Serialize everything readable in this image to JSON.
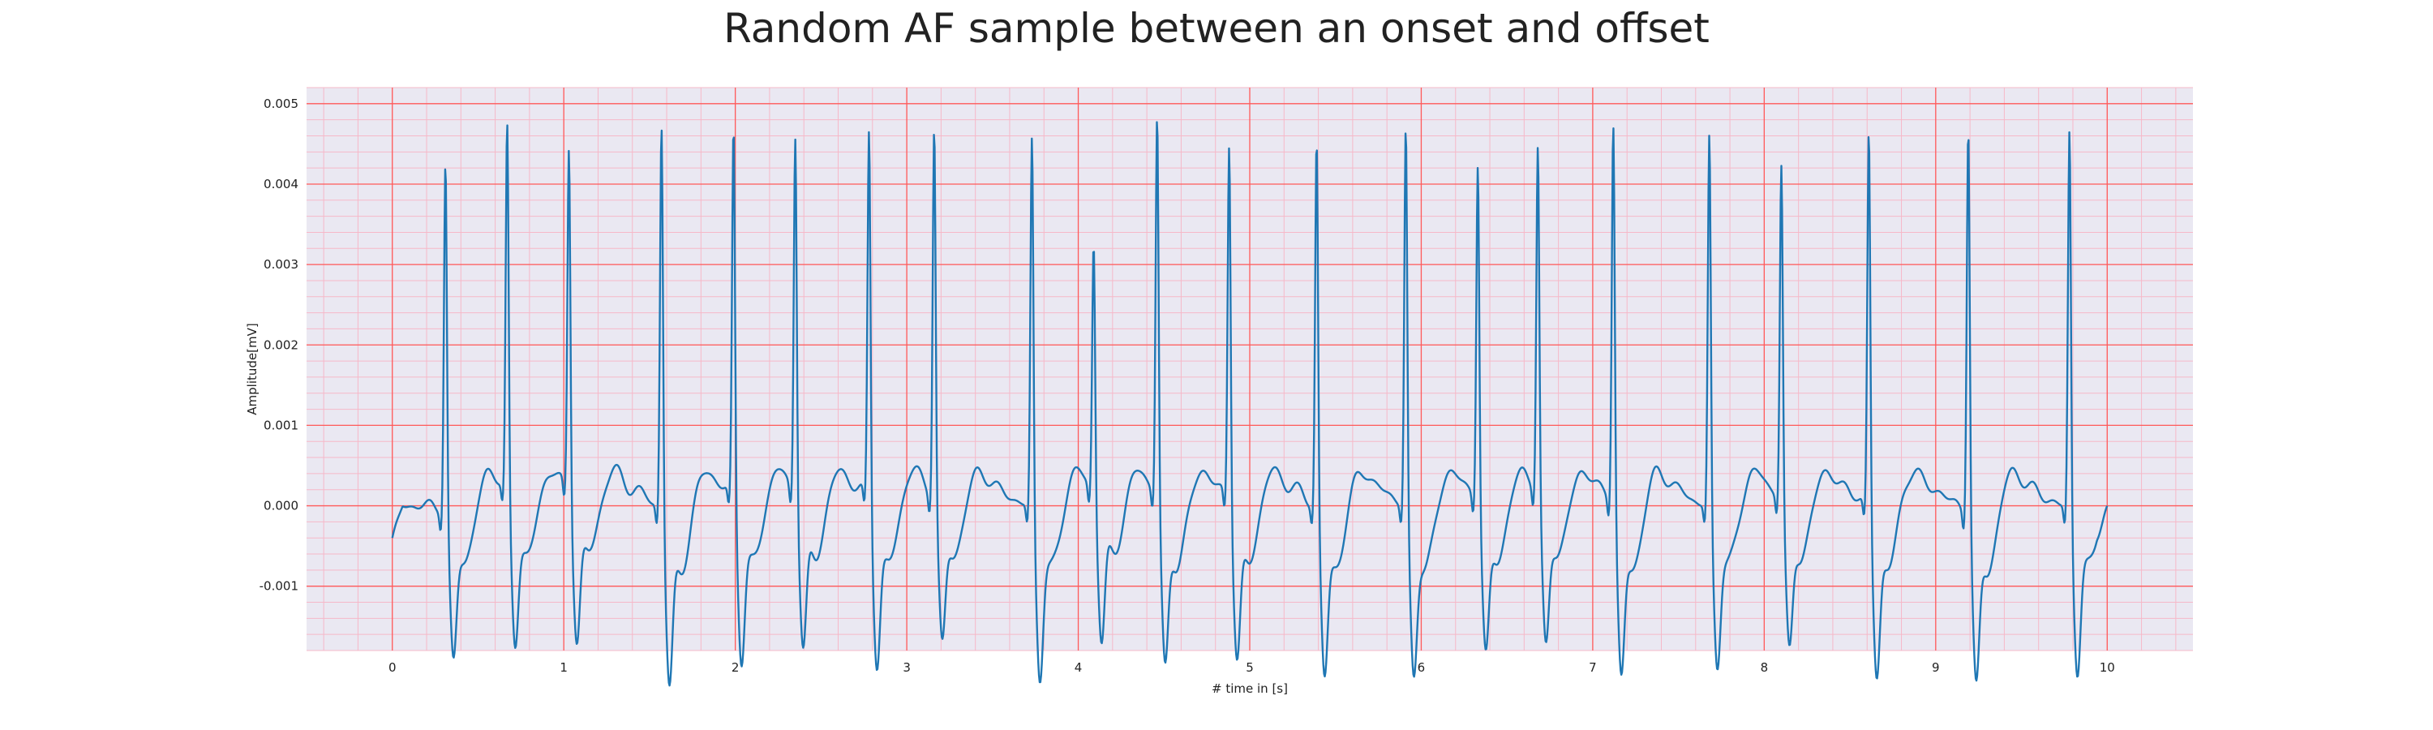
{
  "chart_data": {
    "type": "line",
    "title": "Random AF sample between an onset and offset",
    "xlabel": "# time in [s]",
    "ylabel": "Amplitude[mV]",
    "xlim": [
      -0.5,
      10.5
    ],
    "ylim": [
      -0.0018,
      0.0052
    ],
    "x_ticks": [
      0,
      1,
      2,
      3,
      4,
      5,
      6,
      7,
      8,
      9,
      10
    ],
    "x_tick_labels": [
      "0",
      "1",
      "2",
      "3",
      "4",
      "5",
      "6",
      "7",
      "8",
      "9",
      "10"
    ],
    "y_ticks": [
      -0.001,
      0.0,
      0.001,
      0.002,
      0.003,
      0.004,
      0.005
    ],
    "y_tick_labels": [
      "-0.001",
      "0.000",
      "0.001",
      "0.002",
      "0.003",
      "0.004",
      "0.005"
    ],
    "grid": {
      "major": true,
      "minor": true,
      "major_x_step": 1.0,
      "major_y_step": 0.001,
      "minor_x_step": 0.2,
      "minor_y_step": 0.0002
    },
    "colors": {
      "line": "#1f77b4",
      "plot_background": "#eae8f2",
      "major_grid": "#ff5a5a",
      "minor_grid": "#f6b8c8"
    },
    "series": [
      {
        "name": "",
        "signal_start": -0.0004,
        "signal_end": 0.0,
        "r_peaks_t": [
          0.31,
          0.67,
          1.03,
          1.57,
          1.99,
          2.35,
          2.78,
          3.16,
          3.73,
          4.09,
          4.46,
          4.88,
          5.39,
          5.91,
          6.33,
          6.68,
          7.12,
          7.68,
          8.1,
          8.61,
          9.19,
          9.78
        ],
        "r_peaks_amp": [
          0.0043,
          0.0045,
          0.00425,
          0.0048,
          0.00455,
          0.00445,
          0.00455,
          0.00455,
          0.0046,
          0.0031,
          0.0047,
          0.0044,
          0.00455,
          0.0047,
          0.00415,
          0.00425,
          0.0047,
          0.0046,
          0.0041,
          0.00465,
          0.0048,
          0.0047
        ],
        "s_troughs_amp": [
          -0.00125,
          -0.00122,
          -0.00118,
          -0.0015,
          -0.00128,
          -0.00128,
          -0.00132,
          -0.0012,
          -0.0014,
          -0.0012,
          -0.00145,
          -0.0013,
          -0.0014,
          -0.0014,
          -0.00125,
          -0.00125,
          -0.00145,
          -0.00128,
          -0.0012,
          -0.0014,
          -0.0015,
          -0.00135
        ]
      }
    ]
  }
}
